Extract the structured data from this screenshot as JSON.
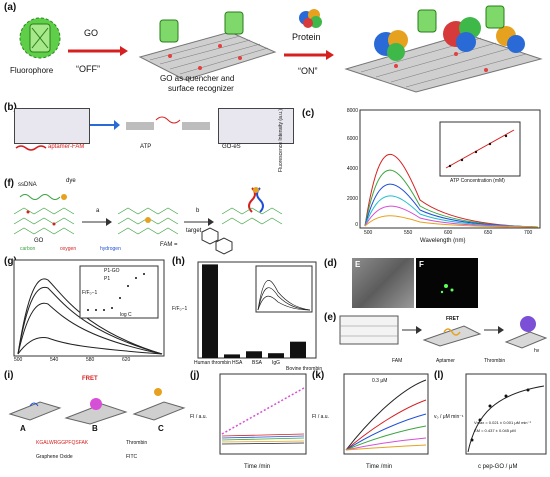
{
  "panel_a": {
    "label": "(a)",
    "fluorophore": "Fluorophore",
    "go": "GO",
    "off": "“OFF”",
    "on": "“ON”",
    "protein": "Protein",
    "quencher": "GO as quencher and",
    "surface": "surface recognizer"
  },
  "panel_b": {
    "label": "(b)",
    "aptamer": "aptamer-FAM",
    "atp": "ATP",
    "goes": "GO-eS"
  },
  "panel_c": {
    "label": "(c)",
    "ylabel": "Fluorescence Intensity (a.u.)",
    "xlabel": "Wavelength (nm)",
    "inset_xlabel": "ATP Concentration (mM)",
    "inset_ylabel": "F/F₀",
    "yticks": [
      "8000",
      "7000",
      "6000",
      "5000",
      "4000",
      "3000",
      "2000",
      "1000",
      "0"
    ],
    "xticks": [
      "500",
      "550",
      "600",
      "650",
      "700"
    ]
  },
  "panel_d": {
    "label": "(d)",
    "e": "E",
    "f": "F"
  },
  "panel_e": {
    "label": "(e)",
    "fret": "FRET",
    "hv": "hν",
    "fam": "FAM",
    "aptamer": "Aptamer",
    "thrombin": "Thrombin"
  },
  "panel_f": {
    "label": "(f)",
    "ssdna": "ssDNA",
    "dye": "dye",
    "a": "a",
    "b": "b",
    "go": "GO",
    "target": "target",
    "carbon": "carbon",
    "oxygen": "oxygen",
    "hydrogen": "hydrogen",
    "fam": "FAM ="
  },
  "panel_g": {
    "label": "(g)",
    "legend": [
      "P1-GO",
      "P1"
    ],
    "inset_xlabel": "log C",
    "inset_ylabel": "F/F₀−1",
    "xticks": [
      "500",
      "520",
      "540",
      "560",
      "580",
      "600",
      "620",
      "640"
    ]
  },
  "panel_h": {
    "label": "(h)",
    "ylabel": "F/F₀−1",
    "yticks": [
      "40",
      "35",
      "30",
      "25",
      "20",
      "15",
      "10",
      "5",
      "0"
    ],
    "categories": [
      "Human thrombin",
      "HSA",
      "BSA",
      "IgG",
      "Bovine thrombin"
    ],
    "values": [
      39,
      1.5,
      2.8,
      2.0,
      6.8
    ]
  },
  "panel_i": {
    "label": "(i)",
    "fret": "FRET",
    "a": "A",
    "b": "B",
    "c": "C",
    "peptide": "KGALWRGGPFQSFAK",
    "graphene": "Graphene Oxide",
    "thrombin": "Thrombin",
    "fitc": "FITC"
  },
  "panel_j": {
    "label": "(j)",
    "ylabel": "FI / a.u.",
    "xlabel": "Time /min",
    "yticks": [
      "6000",
      "5000",
      "4000",
      "3000"
    ],
    "xticks": [
      "0",
      "20",
      "40",
      "60",
      "80",
      "100"
    ]
  },
  "panel_k": {
    "label": "(k)",
    "ylabel": "FI / a.u.",
    "xlabel": "Time /min",
    "annotation": "0.3 μM",
    "yticks": [
      "12000",
      "10000",
      "8000",
      "6000",
      "4000",
      "2000"
    ],
    "xticks": [
      "0",
      "20",
      "40",
      "60",
      "80",
      "100"
    ]
  },
  "panel_l": {
    "label": "(l)",
    "ylabel": "v₀ / μM min⁻¹",
    "xlabel": "c pep-GO / μM",
    "vmax": "Vmax = 0.021 ± 0.001 μM min⁻¹",
    "km": "KM = 0.437 ± 0.045 μM",
    "yticks": [
      "0.020",
      "0.015",
      "0.010",
      "0.005",
      "0.000"
    ],
    "xticks": [
      "0.0",
      "0.5",
      "1.0",
      "1.5",
      "2.0"
    ]
  },
  "colors": {
    "red": "#d62020",
    "green": "#1f9d3a",
    "blue": "#1f4fd8",
    "go_gray": "#9a9a9a"
  }
}
